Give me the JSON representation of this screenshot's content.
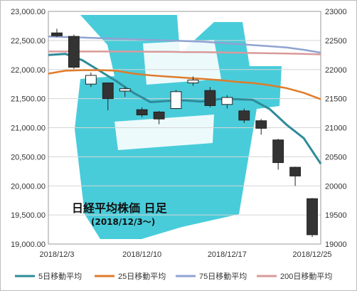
{
  "chart_data": {
    "type": "candlestick",
    "title": "日経平均株価 日足",
    "subtitle": "(2018/12/3〜)",
    "xlabel": "",
    "ylabel": "",
    "ylim": [
      19000,
      23000
    ],
    "y_ticks_left": [
      "23,000.00",
      "22,500.00",
      "22,000.00",
      "21,500.00",
      "21,000.00",
      "20,500.00",
      "20,000.00",
      "19,500.00",
      "19,000.00"
    ],
    "y_ticks_right": [
      "23000",
      "22500",
      "22000",
      "21500",
      "21000",
      "20500",
      "20000",
      "19500",
      "19000"
    ],
    "y_tick_values": [
      23000,
      22500,
      22000,
      21500,
      21000,
      20500,
      20000,
      19500,
      19000
    ],
    "x_tick_labels": [
      {
        "label": "2018/12/3",
        "index": 0
      },
      {
        "label": "2018/12/10",
        "index": 5
      },
      {
        "label": "2018/12/17",
        "index": 10
      },
      {
        "label": "2018/12/25",
        "index": 15
      }
    ],
    "grid": true,
    "legend_position": "bottom",
    "colors": {
      "up_body": "#ffffff",
      "down_body": "#333333",
      "candle_edge": "#222222",
      "ma5": "#2e8b99",
      "ma25": "#e07b2a",
      "ma75": "#8fa3d1",
      "ma200": "#d99a9a",
      "watermark": "#29c3d3",
      "grid": "#d5d5d5"
    },
    "candles": [
      {
        "date": "2018/12/3",
        "open": 22630,
        "high": 22700,
        "low": 22560,
        "close": 22580
      },
      {
        "date": "2018/12/4",
        "open": 22570,
        "high": 22600,
        "low": 22010,
        "close": 22040
      },
      {
        "date": "2018/12/5",
        "open": 21750,
        "high": 21950,
        "low": 21700,
        "close": 21900
      },
      {
        "date": "2018/12/6",
        "open": 21770,
        "high": 21780,
        "low": 21300,
        "close": 21500
      },
      {
        "date": "2018/12/7",
        "open": 21630,
        "high": 21700,
        "low": 21530,
        "close": 21670
      },
      {
        "date": "2018/12/10",
        "open": 21310,
        "high": 21350,
        "low": 21180,
        "close": 21220
      },
      {
        "date": "2018/12/11",
        "open": 21270,
        "high": 21290,
        "low": 21060,
        "close": 21150
      },
      {
        "date": "2018/12/12",
        "open": 21330,
        "high": 21650,
        "low": 21320,
        "close": 21620
      },
      {
        "date": "2018/12/13",
        "open": 21770,
        "high": 21880,
        "low": 21720,
        "close": 21820
      },
      {
        "date": "2018/12/14",
        "open": 21640,
        "high": 21700,
        "low": 21350,
        "close": 21380
      },
      {
        "date": "2018/12/17",
        "open": 21400,
        "high": 21560,
        "low": 21330,
        "close": 21520
      },
      {
        "date": "2018/12/18",
        "open": 21290,
        "high": 21330,
        "low": 21080,
        "close": 21130
      },
      {
        "date": "2018/12/19",
        "open": 21120,
        "high": 21150,
        "low": 20880,
        "close": 20990
      },
      {
        "date": "2018/12/20",
        "open": 20790,
        "high": 20810,
        "low": 20280,
        "close": 20400
      },
      {
        "date": "2018/12/21",
        "open": 20320,
        "high": 20330,
        "low": 20000,
        "close": 20170
      },
      {
        "date": "2018/12/25",
        "open": 19780,
        "high": 19790,
        "low": 19120,
        "close": 19160
      }
    ],
    "series": [
      {
        "name": "5日移動平均",
        "values": [
          22250,
          22270,
          22160,
          21980,
          21800,
          21600,
          21440,
          21460,
          21470,
          21450,
          21490,
          21490,
          21480,
          21320,
          21050,
          20820,
          20380
        ]
      },
      {
        "name": "25日移動平均",
        "values": [
          21930,
          21980,
          21990,
          21990,
          21980,
          21930,
          21900,
          21880,
          21860,
          21840,
          21820,
          21790,
          21770,
          21730,
          21680,
          21600,
          21490
        ]
      },
      {
        "name": "75日移動平均",
        "values": [
          22570,
          22560,
          22550,
          22540,
          22530,
          22520,
          22510,
          22500,
          22490,
          22480,
          22460,
          22440,
          22420,
          22400,
          22380,
          22340,
          22290
        ]
      },
      {
        "name": "200日移動平均",
        "values": [
          22310,
          22310,
          22310,
          22310,
          22310,
          22310,
          22305,
          22305,
          22300,
          22300,
          22295,
          22290,
          22285,
          22280,
          22275,
          22270,
          22260
        ]
      }
    ],
    "ma_x_offset": -0.5
  }
}
